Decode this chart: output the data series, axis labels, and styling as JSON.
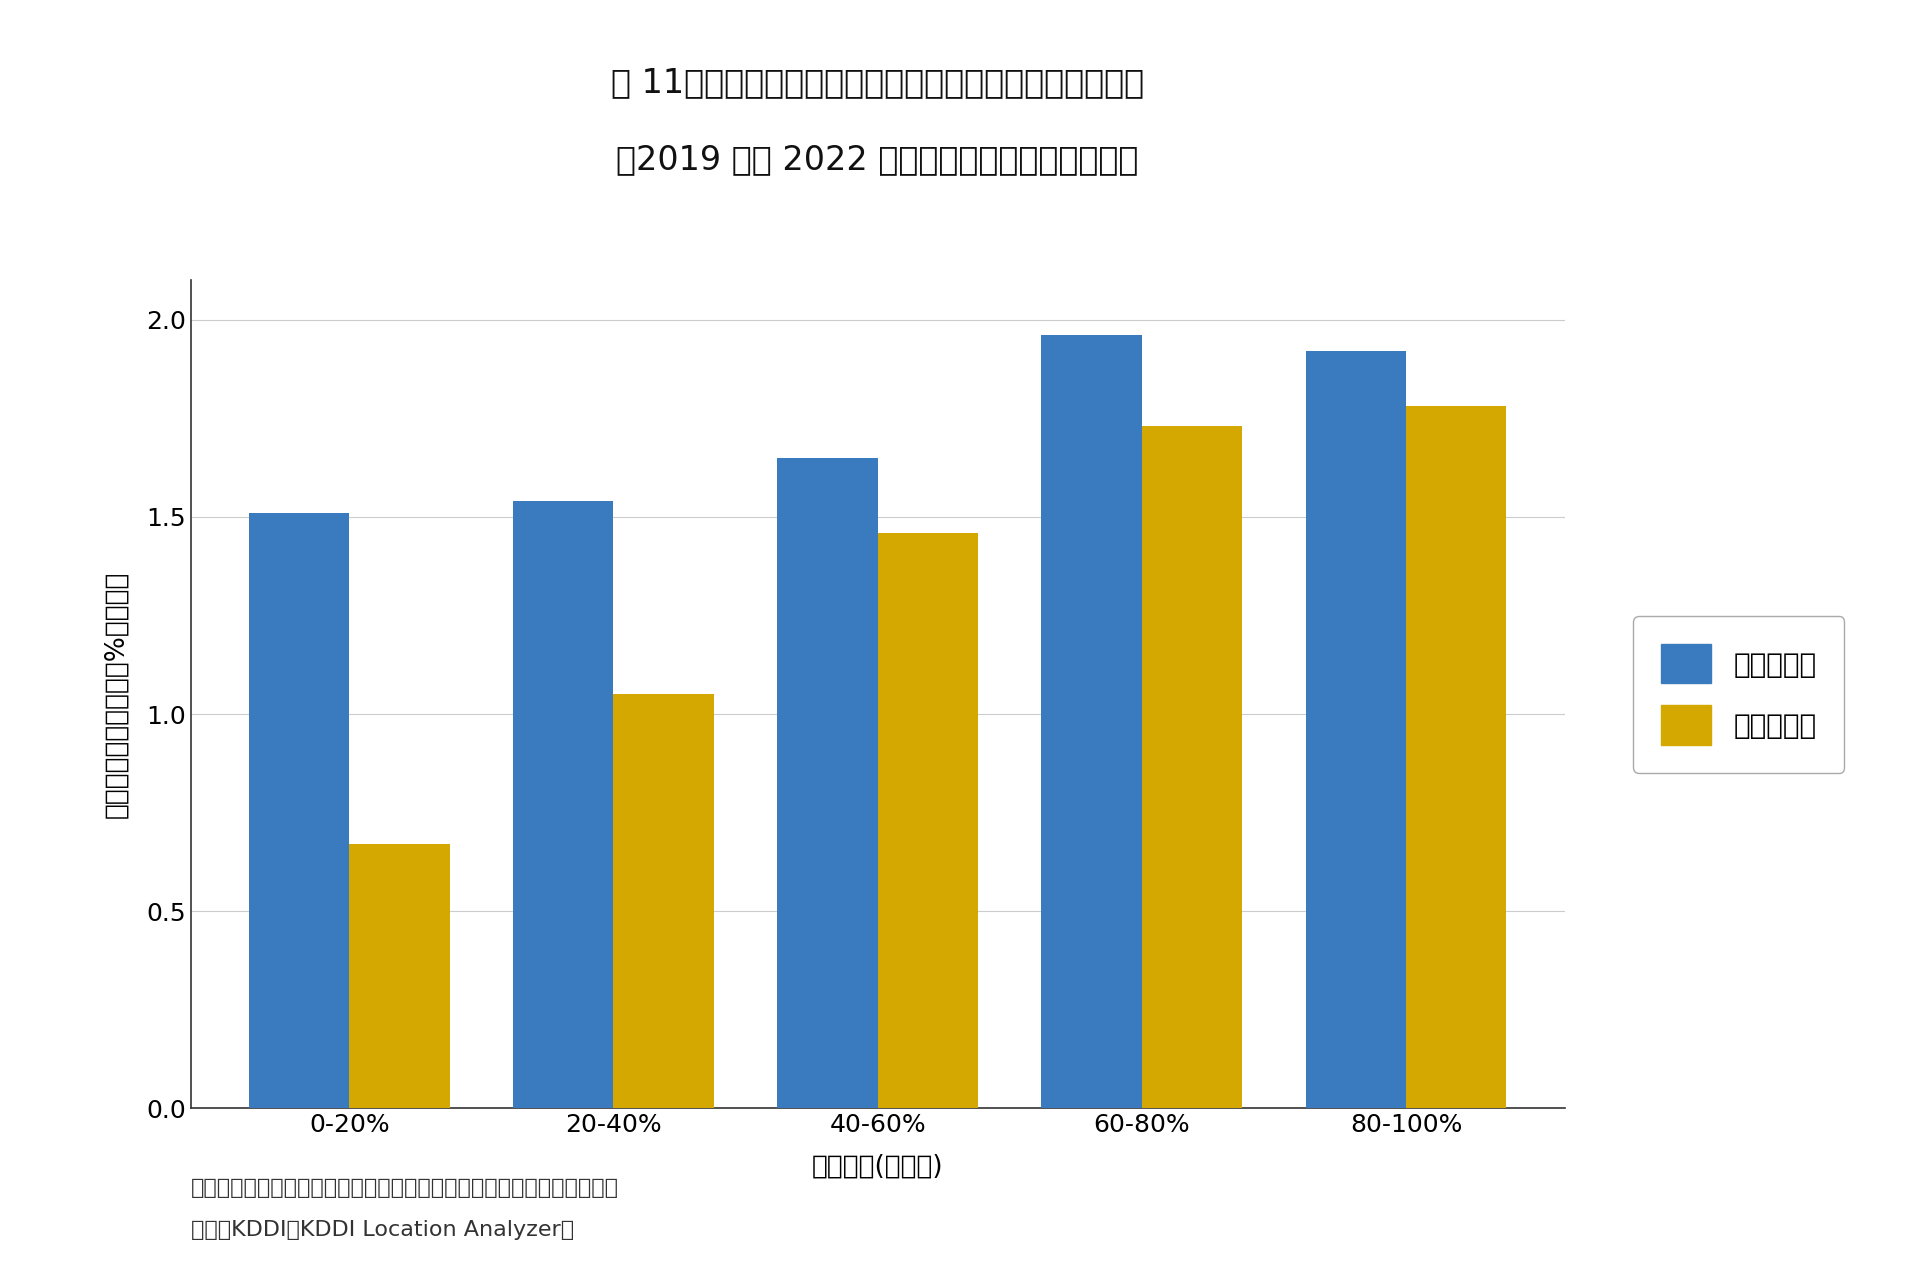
{
  "title_line1": "図 11　東京都の駅近・駅遠エリアの平均居住者数変化率",
  "title_line2": "（2019 から 2022 年、居住者数五分位階級別）",
  "categories": [
    "0-20%",
    "20-40%",
    "40-60%",
    "60-80%",
    "80-100%"
  ],
  "series": [
    {
      "name": "駅近エリア",
      "values": [
        1.51,
        1.54,
        1.65,
        1.96,
        1.92
      ],
      "color": "#3a7bbf"
    },
    {
      "name": "駅遠エリア",
      "values": [
        0.67,
        1.05,
        1.46,
        1.73,
        1.78
      ],
      "color": "#d4a800"
    }
  ],
  "xlabel": "居住者数(五分位)",
  "ylabel": "平均居住者数変化率（%、年率）",
  "ylim": [
    0.0,
    2.1
  ],
  "yticks": [
    0.0,
    0.5,
    1.0,
    1.5,
    2.0
  ],
  "note_line1": "注：居住者数の５分位階級は、図の右側ほど居住者数が多いことを示す",
  "note_line2": "出所：KDDI「KDDI Location Analyzer」",
  "background_color": "#ffffff",
  "bar_width": 0.38,
  "title_fontsize": 24,
  "axis_label_fontsize": 19,
  "tick_fontsize": 18,
  "legend_fontsize": 20,
  "note_fontsize": 16,
  "spine_color": "#333333"
}
